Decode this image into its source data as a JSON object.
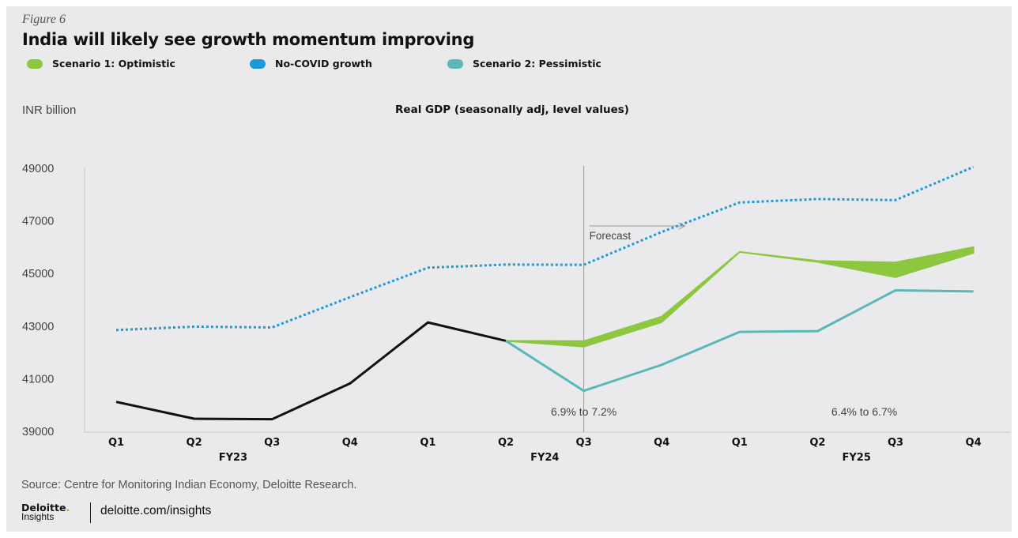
{
  "figure_label": "Figure 6",
  "title": "India will likely see growth momentum improving",
  "legend": [
    {
      "label": "Scenario 1: Optimistic",
      "color": "#8dc63f"
    },
    {
      "label": "No-COVID growth",
      "color": "#1a9ad6"
    },
    {
      "label": "Scenario 2: Pessimistic",
      "color": "#5bb8b8"
    }
  ],
  "unit_label": "INR billion",
  "chart_title": "Real GDP (seasonally adj, level values)",
  "source": "Source: Centre for Monitoring Indian Economy, Deloitte Research.",
  "brand": {
    "logo": "Deloitte",
    "logo_dot": ".",
    "logo_sub": "Insights",
    "url": "deloitte.com/insights"
  },
  "chart_data": {
    "type": "line",
    "categories": [
      "Q1",
      "Q2",
      "Q3",
      "Q4",
      "Q1",
      "Q2",
      "Q3",
      "Q4",
      "Q1",
      "Q2",
      "Q3",
      "Q4"
    ],
    "groups": [
      {
        "label": "FY23",
        "start": 0,
        "end": 3
      },
      {
        "label": "FY24",
        "start": 4,
        "end": 7
      },
      {
        "label": "FY25",
        "start": 8,
        "end": 11
      }
    ],
    "ylim": [
      39000,
      49000
    ],
    "yticks": [
      39000,
      41000,
      43000,
      45000,
      47000,
      49000
    ],
    "series": [
      {
        "name": "No-COVID growth",
        "color": "#1a9ad6",
        "style": "dotted",
        "values": [
          42850,
          42980,
          42950,
          44100,
          45220,
          45340,
          45330,
          46580,
          47700,
          47830,
          47790,
          49050
        ]
      },
      {
        "name": "",
        "color": "#111111",
        "style": "solid",
        "values": [
          40120,
          39480,
          39460,
          40820,
          43140,
          42440,
          null,
          null,
          null,
          null,
          null,
          null
        ]
      },
      {
        "name": "Scenario 2: Pessimistic",
        "color": "#5bb8b8",
        "style": "solid",
        "values": [
          null,
          null,
          null,
          null,
          null,
          42440,
          40540,
          41530,
          42780,
          42810,
          44360,
          44320
        ]
      }
    ],
    "band": {
      "name": "Scenario 1: Optimistic",
      "color": "#8dc63f",
      "start_index": 5,
      "lower": [
        42440,
        42220,
        43150,
        45820,
        45440,
        44860,
        45780
      ],
      "upper": [
        42440,
        42430,
        43360,
        45820,
        45480,
        45420,
        46000
      ]
    },
    "forecast": {
      "index": 6,
      "label": "Forecast"
    },
    "annotations": [
      {
        "text": "6.9% to 7.2%",
        "x_index": 6
      },
      {
        "text": "6.4% to 6.7%",
        "x_index": 9.6
      }
    ]
  }
}
